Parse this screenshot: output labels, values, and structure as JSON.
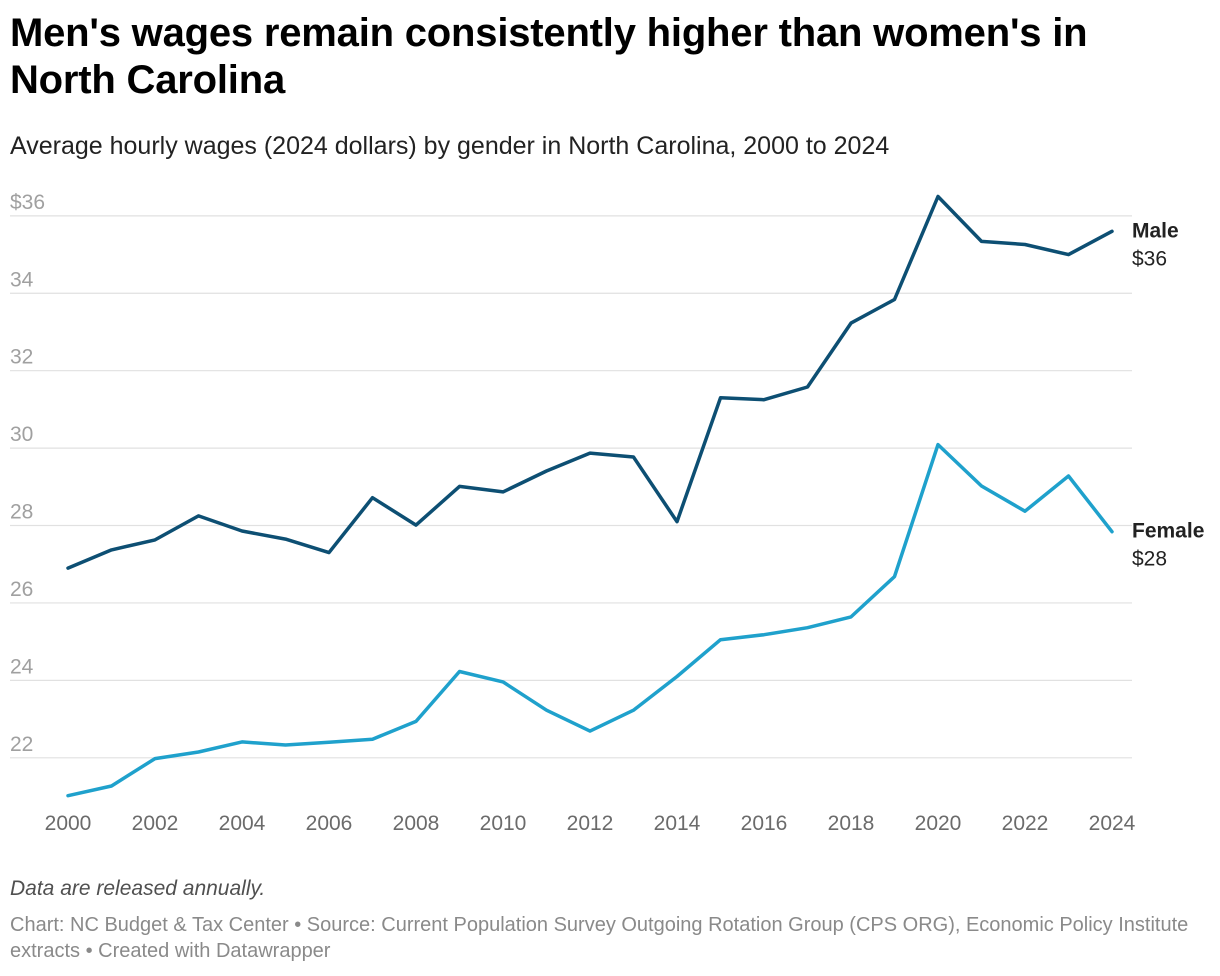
{
  "header": {
    "title": "Men's wages remain consistently higher than women's in North Carolina",
    "subtitle": "Average hourly wages (2024 dollars) by gender in North Carolina, 2000 to 2024"
  },
  "footer": {
    "note": "Data are released annually.",
    "source": "Chart: NC Budget & Tax Center • Source: Current Population Survey Outgoing Rotation Group (CPS ORG), Economic Policy Institute extracts • Created with Datawrapper"
  },
  "colors": {
    "male": "#0d4f73",
    "female": "#1fa1cc",
    "grid": "#e1e1e1",
    "axis_text": "#a0a0a0",
    "x_axis_text": "#6b6b6b",
    "label_text": "#222222"
  },
  "chart_data": {
    "type": "line",
    "title": "Men's wages remain consistently higher than women's in North Carolina",
    "subtitle": "Average hourly wages (2024 dollars) by gender in North Carolina, 2000 to 2024",
    "xlabel": "",
    "ylabel": "",
    "x": [
      2000,
      2001,
      2002,
      2003,
      2004,
      2005,
      2006,
      2007,
      2008,
      2009,
      2010,
      2011,
      2012,
      2013,
      2014,
      2015,
      2016,
      2017,
      2018,
      2019,
      2020,
      2021,
      2022,
      2023,
      2024
    ],
    "x_ticks": [
      "2000",
      "2002",
      "2004",
      "2006",
      "2008",
      "2010",
      "2012",
      "2014",
      "2016",
      "2018",
      "2020",
      "2022",
      "2024"
    ],
    "y_ticks": [
      "$36",
      "34",
      "32",
      "30",
      "28",
      "26",
      "24",
      "22"
    ],
    "ylim": [
      21,
      36.5
    ],
    "grid": true,
    "legend": "direct labels at line ends (right)",
    "series": [
      {
        "name": "Male",
        "end_label": "$36",
        "values": [
          26.9,
          27.37,
          27.63,
          28.25,
          27.86,
          27.65,
          27.3,
          28.72,
          28.01,
          29.01,
          28.87,
          29.41,
          29.87,
          29.77,
          28.1,
          31.3,
          31.25,
          31.58,
          33.23,
          33.84,
          36.5,
          35.34,
          35.26,
          35.0,
          35.6
        ]
      },
      {
        "name": "Female",
        "end_label": "$28",
        "values": [
          21.02,
          21.27,
          21.98,
          22.15,
          22.41,
          22.33,
          22.4,
          22.48,
          22.94,
          24.23,
          23.96,
          23.23,
          22.69,
          23.23,
          24.1,
          25.05,
          25.18,
          25.36,
          25.64,
          26.68,
          30.09,
          29.02,
          28.37,
          29.28,
          27.84
        ]
      }
    ]
  }
}
